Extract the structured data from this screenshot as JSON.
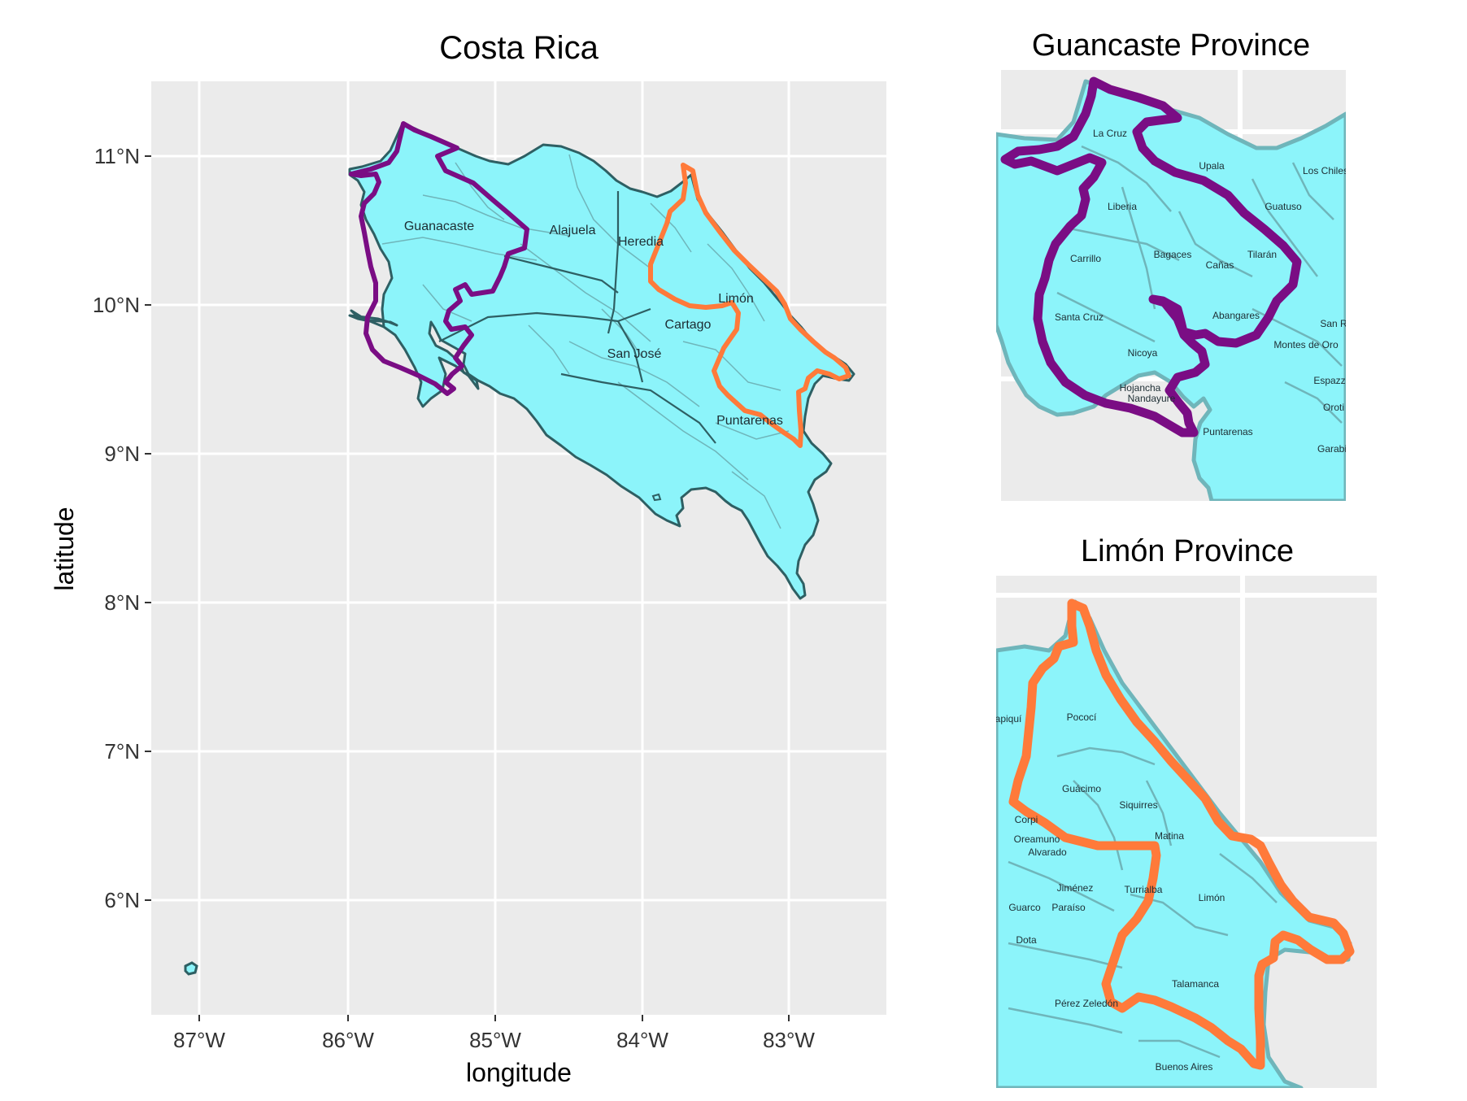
{
  "main_map": {
    "title": "Costa Rica",
    "xlabel": "longitude",
    "ylabel": "latitude",
    "x_ticks": [
      "87°W",
      "86°W",
      "85°W",
      "84°W",
      "83°W"
    ],
    "y_ticks": [
      "11°N",
      "10°N",
      "9°N",
      "8°N",
      "7°N",
      "6°N"
    ],
    "province_labels": [
      "Guanacaste",
      "Alajuela",
      "Heredia",
      "Limón",
      "Cartago",
      "San José",
      "Puntarenas"
    ]
  },
  "inset_guanacaste": {
    "title": "Guancaste Province",
    "canton_labels": [
      "La Cruz",
      "Upala",
      "Los Chiles",
      "Liberia",
      "Guatuso",
      "Carrillo",
      "Bagaces",
      "Cañas",
      "Tilarán",
      "Abangares",
      "Santa Cruz",
      "San R",
      "Montes de Oro",
      "Nicoya",
      "Espazz",
      "Hojancha",
      "Nandayure",
      "Oroti",
      "Puntarenas",
      "Garabi"
    ]
  },
  "inset_limon": {
    "title": "Limón Province",
    "canton_labels": [
      "apiquí",
      "Pococí",
      "Guácimo",
      "Siquirres",
      "Corpi",
      "Oreamuno",
      "Alvarado",
      "Matina",
      "Turrialba",
      "Jiménez",
      "Limón",
      "Guarco",
      "Paraíso",
      "Dota",
      "Talamanca",
      "Pérez Zeledón",
      "Buenos Aires"
    ]
  },
  "colors": {
    "panel_bg": "#ebebeb",
    "grid": "#ffffff",
    "land_fill": "#8cf4fa",
    "outline": "#2e5f63",
    "canton_lines": "#6fb5ba",
    "guanacaste_highlight": "#7a0d84",
    "limon_highlight": "#ff7a3a"
  }
}
